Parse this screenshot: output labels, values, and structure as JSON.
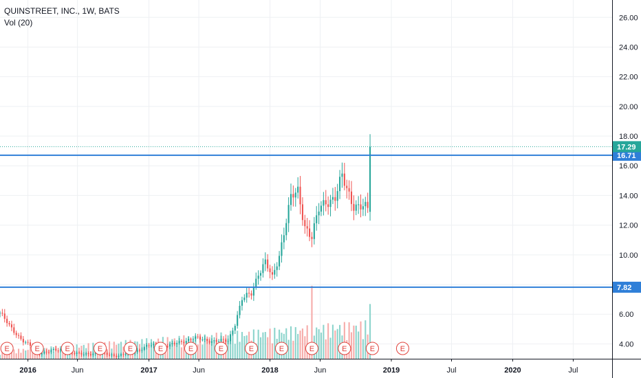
{
  "legend": {
    "symbol": "QUINSTREET, INC., 1W, BATS",
    "indicator": "Vol (20)"
  },
  "chart_data": {
    "type": "candlestick",
    "y_axis": {
      "ticks": [
        "4.00",
        "6.00",
        "8.00",
        "10.00",
        "12.00",
        "14.00",
        "16.00",
        "18.00",
        "20.00",
        "22.00",
        "24.00",
        "26.00"
      ],
      "range": [
        3.0,
        26.8
      ]
    },
    "x_axis": {
      "labels": [
        "2016",
        "Jun",
        "2017",
        "Jun",
        "2018",
        "Jun",
        "2019",
        "Jul",
        "2020",
        "Jul"
      ],
      "range": [
        "2015-10-12",
        "2020-10-26"
      ]
    },
    "horizontal_lines": [
      {
        "value": 16.71,
        "label": "16.71",
        "color": "#2f7fd8"
      },
      {
        "value": 7.82,
        "label": "7.82",
        "color": "#2f7fd8"
      }
    ],
    "last_price": {
      "value": 17.29,
      "label": "17.29",
      "color": "#26a69a"
    },
    "earnings_marker_label": "E",
    "earnings_dates": [
      "2015-11-02",
      "2016-02-01",
      "2016-05-02",
      "2016-08-08",
      "2016-11-07",
      "2017-02-06",
      "2017-05-08",
      "2017-08-07",
      "2017-11-06",
      "2018-02-05",
      "2018-05-07",
      "2018-08-13",
      "2018-11-05",
      "2019-02-04"
    ],
    "up_color": "#26a69a",
    "down_color": "#ef5350",
    "price_anchors": [
      [
        "2015-10-12",
        6.1
      ],
      [
        "2015-11-09",
        5.2
      ],
      [
        "2015-12-21",
        4.2
      ],
      [
        "2016-02-08",
        3.4
      ],
      [
        "2016-04-04",
        3.6
      ],
      [
        "2016-06-06",
        3.3
      ],
      [
        "2016-08-01",
        3.4
      ],
      [
        "2016-10-03",
        3.2
      ],
      [
        "2016-11-21",
        3.5
      ],
      [
        "2017-01-02",
        3.9
      ],
      [
        "2017-03-06",
        3.9
      ],
      [
        "2017-05-15",
        4.4
      ],
      [
        "2017-07-10",
        4.2
      ],
      [
        "2017-08-28",
        4.2
      ],
      [
        "2017-09-18",
        5.4
      ],
      [
        "2017-10-09",
        7.0
      ],
      [
        "2017-11-06",
        7.4
      ],
      [
        "2017-11-27",
        8.8
      ],
      [
        "2017-12-18",
        9.5
      ],
      [
        "2018-01-08",
        8.4
      ],
      [
        "2018-01-29",
        10.0
      ],
      [
        "2018-02-19",
        12.4
      ],
      [
        "2018-03-05",
        13.8
      ],
      [
        "2018-03-26",
        14.2
      ],
      [
        "2018-04-16",
        12.0
      ],
      [
        "2018-05-07",
        11.2
      ],
      [
        "2018-05-28",
        13.0
      ],
      [
        "2018-06-18",
        13.6
      ],
      [
        "2018-07-16",
        13.9
      ],
      [
        "2018-08-06",
        15.2
      ],
      [
        "2018-08-20",
        14.4
      ],
      [
        "2018-09-10",
        13.4
      ],
      [
        "2018-10-08",
        13.2
      ],
      [
        "2018-10-22",
        13.0
      ],
      [
        "2018-10-29",
        17.2
      ]
    ]
  }
}
